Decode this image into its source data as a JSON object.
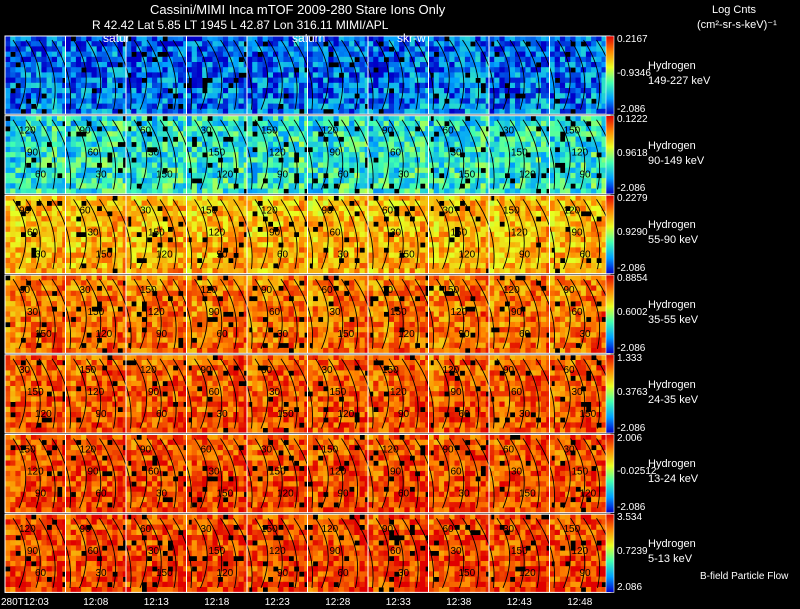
{
  "header": {
    "title": "Cassini/MIMI Inca mTOF  2009-280   Stare    Ions Only",
    "ephemeris": "R        42.42 Lat 5.85 LT 1945 L        42.87 Lon      316.11   MIMI/APL",
    "overlay_labels": [
      "satur",
      "saturn",
      "skr-w"
    ]
  },
  "units": {
    "line1": "Log Cnts",
    "line2": "(cm²-sr-s-keV)⁻¹"
  },
  "legend_note": "B-field Particle Flow",
  "chart_data": {
    "type": "heatmap",
    "title": "Cassini/MIMI Inca mTOF  2009-280   Stare    Ions Only",
    "zlabel": "Log Cnts (cm²-sr-s-keV)⁻¹",
    "columns": [
      "280T12:03",
      "12:08",
      "12:13",
      "12:18",
      "12:23",
      "12:28",
      "12:33",
      "12:38",
      "12:43",
      "12:48"
    ],
    "rows": [
      {
        "species": "Hydrogen",
        "energy": "149-227 keV",
        "cmax": "0.2167",
        "cmid": "-0.9346",
        "cmin": "-2.086"
      },
      {
        "species": "Hydrogen",
        "energy": "90-149 keV",
        "cmax": "0.1222",
        "cmid": "0.9618",
        "cmin": "-2.086"
      },
      {
        "species": "Hydrogen",
        "energy": "55-90 keV",
        "cmax": "0.2279",
        "cmid": "0.9290",
        "cmin": "-2.086"
      },
      {
        "species": "Hydrogen",
        "energy": "35-55 keV",
        "cmax": "0.8854",
        "cmid": "0.6002",
        "cmin": "-2.086"
      },
      {
        "species": "Hydrogen",
        "energy": "24-35 keV",
        "cmax": "1.333",
        "cmid": "0.3763",
        "cmin": "-2.086"
      },
      {
        "species": "Hydrogen",
        "energy": "13-24 keV",
        "cmax": "2.006",
        "cmid": "-0.02512",
        "cmin": "-2.086"
      },
      {
        "species": "Hydrogen",
        "energy": "5-13 keV",
        "cmax": "3.534",
        "cmid": "0.7239",
        "cmin": "2.086"
      }
    ],
    "row_intensity": [
      0.1,
      0.3,
      0.68,
      0.78,
      0.82,
      0.84,
      0.85
    ],
    "contour_labels": [
      "150",
      "120",
      "90",
      "60",
      "30"
    ]
  }
}
